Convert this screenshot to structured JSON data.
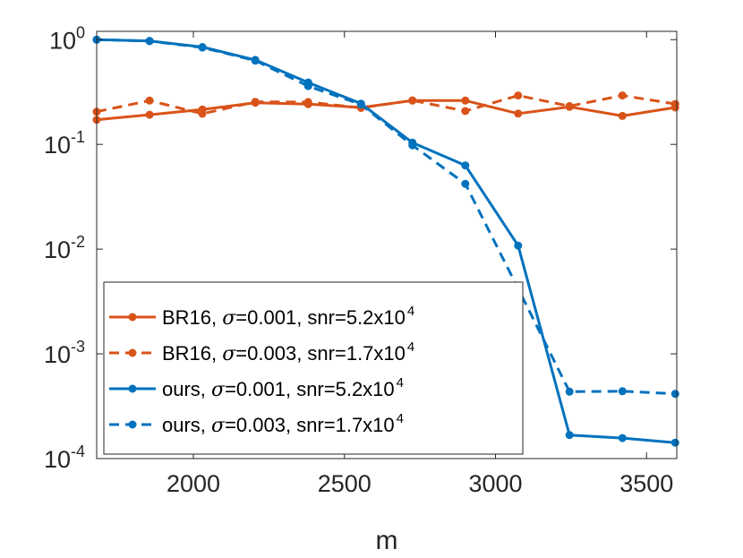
{
  "chart_data": {
    "type": "line",
    "xlabel": "m",
    "ylabel": "",
    "xlim": [
      1680,
      3600
    ],
    "ylim": [
      0.0001,
      1.2
    ],
    "yscale": "log",
    "xticks": [
      2000,
      2500,
      3000,
      3500
    ],
    "xtick_labels": [
      "2000",
      "2500",
      "3000",
      "3500"
    ],
    "yticks": [
      0.0001,
      0.001,
      0.01,
      0.1,
      1
    ],
    "ytick_labels": [
      {
        "base": "10",
        "exp": "-4"
      },
      {
        "base": "10",
        "exp": "-3"
      },
      {
        "base": "10",
        "exp": "-2"
      },
      {
        "base": "10",
        "exp": "-1"
      },
      {
        "base": "10",
        "exp": "0"
      }
    ],
    "grid": false,
    "legend_position": "bottom-left",
    "x": [
      1680,
      1855,
      2030,
      2205,
      2380,
      2555,
      2725,
      2900,
      3075,
      3245,
      3420,
      3595
    ],
    "series": [
      {
        "legend": {
          "prefix": "BR16, ",
          "symbol": "σ",
          "middle": "=0.001, snr=5.2x10",
          "sup": "4"
        },
        "color": "#D95319",
        "dash": "solid",
        "values": [
          0.172,
          0.192,
          0.215,
          0.25,
          0.242,
          0.225,
          0.262,
          0.262,
          0.197,
          0.228,
          0.187,
          0.225
        ]
      },
      {
        "legend": {
          "prefix": "BR16, ",
          "symbol": "σ",
          "middle": "=0.003, snr=1.7x10",
          "sup": "4"
        },
        "color": "#D95319",
        "dash": "dashed",
        "values": [
          0.205,
          0.262,
          0.196,
          0.255,
          0.254,
          0.223,
          0.263,
          0.208,
          0.293,
          0.232,
          0.293,
          0.243
        ]
      },
      {
        "legend": {
          "prefix": "ours, ",
          "symbol": "σ",
          "middle": "=0.001, snr=5.2x10",
          "sup": "4"
        },
        "color": "#0072BD",
        "dash": "solid",
        "values": [
          1.0,
          0.97,
          0.85,
          0.64,
          0.39,
          0.245,
          0.104,
          0.063,
          0.0108,
          0.000168,
          0.000157,
          0.000142
        ]
      },
      {
        "legend": {
          "prefix": "ours, ",
          "symbol": "σ",
          "middle": "=0.003, snr=1.7x10",
          "sup": "4"
        },
        "color": "#0072BD",
        "dash": "dashed",
        "values": [
          1.0,
          0.97,
          0.84,
          0.63,
          0.36,
          0.24,
          0.098,
          0.042,
          0.0042,
          0.000435,
          0.00044,
          0.000415
        ]
      }
    ]
  }
}
